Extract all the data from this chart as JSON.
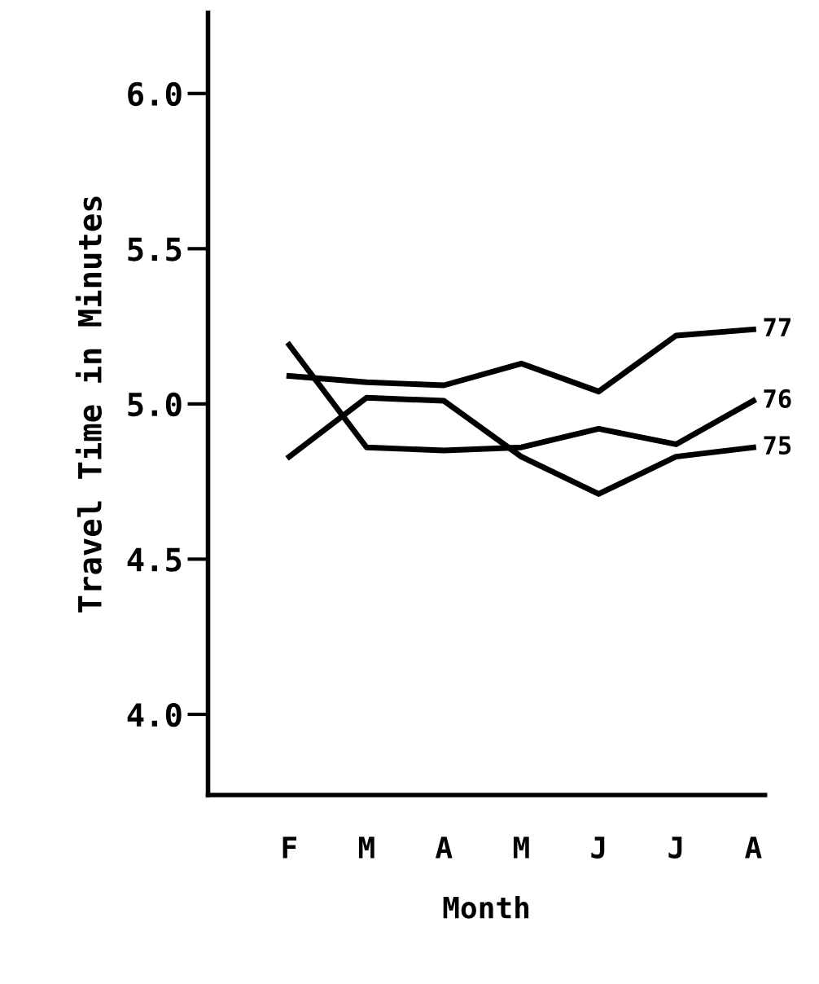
{
  "chart_data": {
    "type": "line",
    "xlabel": "Month",
    "ylabel": "Travel Time in Minutes",
    "categories": [
      "F",
      "M",
      "A",
      "M",
      "J",
      "J",
      "A"
    ],
    "series": [
      {
        "name": "77",
        "color": "#000000",
        "values": [
          5.09,
          5.07,
          5.06,
          5.13,
          5.04,
          5.22,
          5.24
        ]
      },
      {
        "name": "76",
        "color": "#000000",
        "values": [
          5.19,
          4.86,
          4.85,
          4.86,
          4.92,
          4.87,
          5.01
        ]
      },
      {
        "name": "75",
        "color": "#000000",
        "values": [
          4.83,
          5.02,
          5.01,
          4.83,
          4.71,
          4.83,
          4.86
        ]
      }
    ],
    "ylim": [
      3.74,
      6.26
    ],
    "yticks": [
      {
        "value": 4.0,
        "label": "4.0"
      },
      {
        "value": 4.5,
        "label": "4.5"
      },
      {
        "value": 5.0,
        "label": "5.0"
      },
      {
        "value": 5.5,
        "label": "5.5"
      },
      {
        "value": 6.0,
        "label": "6.0"
      }
    ],
    "grid": false,
    "legend": false,
    "marker": "none",
    "line_style": "solid"
  }
}
